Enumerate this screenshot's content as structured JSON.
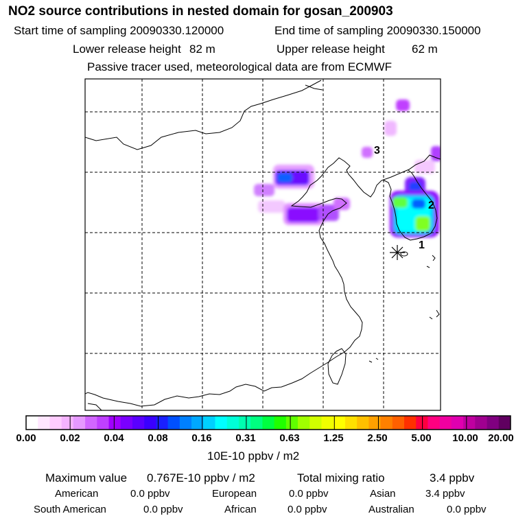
{
  "header": {
    "title": "NO2 source contributions in nested domain for gosan_200903",
    "start_label": "Start time of sampling 20090330.120000",
    "end_label": "End time of sampling 20090330.150000",
    "lower_label": "Lower release height",
    "lower_value": "82 m",
    "upper_label": "Upper release height",
    "upper_value": "62 m",
    "note": "Passive tracer used, meteorological data are from ECMWF"
  },
  "map": {
    "markers": [
      {
        "label": "1"
      },
      {
        "label": "2"
      },
      {
        "label": "3"
      }
    ]
  },
  "colorbar": {
    "ticks": [
      "0.00",
      "0.02",
      "0.04",
      "0.08",
      "0.16",
      "0.31",
      "0.63",
      "1.25",
      "2.50",
      "5.00",
      "10.00",
      "20.00"
    ],
    "unit": "10E-10 ppbv / m2",
    "colors": [
      "#ffffff",
      "#ffe6ff",
      "#ffccff",
      "#f5b3ff",
      "#e699ff",
      "#d166ff",
      "#bf40ff",
      "#a000ff",
      "#7a00ff",
      "#5a00ff",
      "#3a00ff",
      "#1a20ff",
      "#0050ff",
      "#0080ff",
      "#00a8ff",
      "#00d0ff",
      "#00ffff",
      "#00ffd8",
      "#00ffb0",
      "#00ff80",
      "#00ff40",
      "#20ff00",
      "#60ff00",
      "#a0ff00",
      "#d0ff00",
      "#f0ff00",
      "#ffff00",
      "#ffe000",
      "#ffc000",
      "#ffa000",
      "#ff8000",
      "#ff6000",
      "#ff3000",
      "#ff0040",
      "#ff0080",
      "#f000a0",
      "#e000b0",
      "#c000a0",
      "#a00090",
      "#800080",
      "#600060"
    ]
  },
  "footer": {
    "max_label": "Maximum value",
    "max_value": "0.767E-10 ppbv / m2",
    "total_label": "Total mixing ratio",
    "total_value": "3.4 ppbv",
    "regions": [
      {
        "name": "American",
        "value": "0.0 ppbv"
      },
      {
        "name": "European",
        "value": "0.0 ppbv"
      },
      {
        "name": "Asian",
        "value": "3.4 ppbv"
      },
      {
        "name": "South American",
        "value": "0.0 ppbv"
      },
      {
        "name": "African",
        "value": "0.0 ppbv"
      },
      {
        "name": "Australian",
        "value": "0.0 ppbv"
      }
    ]
  }
}
